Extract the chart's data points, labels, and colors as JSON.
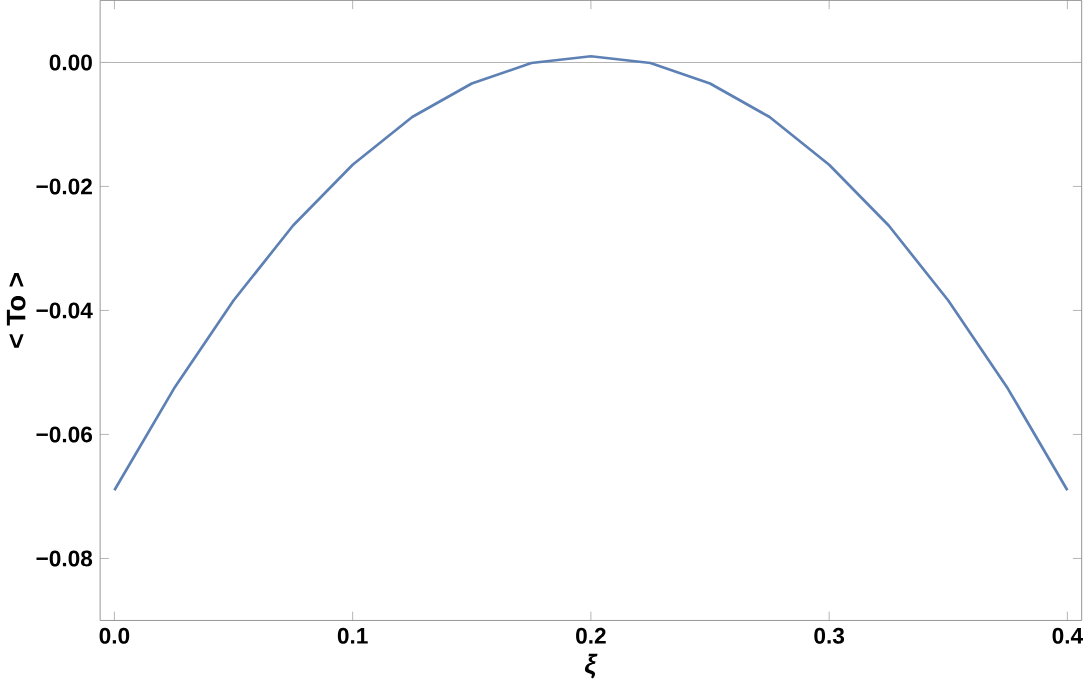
{
  "chart_data": {
    "type": "line",
    "xlabel": "*ξ*",
    "ylabel": "< To >",
    "x": [
      0,
      0.025,
      0.05,
      0.075,
      0.1,
      0.125,
      0.15,
      0.175,
      0.2,
      0.225,
      0.25,
      0.275,
      0.3,
      0.325,
      0.35,
      0.375,
      0.4
    ],
    "series": [
      {
        "color": "#5e81b5",
        "values": [
          -0.069,
          -0.0526,
          -0.0384,
          -0.0263,
          -0.0165,
          -0.0088,
          -0.0034,
          -0.0001,
          0.001,
          -0.0001,
          -0.0034,
          -0.0088,
          -0.0165,
          -0.0263,
          -0.0384,
          -0.0526,
          -0.069
        ]
      }
    ],
    "xlim": [
      -0.006,
      0.406
    ],
    "ylim": [
      -0.09,
      0.01
    ],
    "xticks": [
      {
        "value": 0,
        "label": "0.0"
      },
      0.1,
      0.2,
      0.3,
      0.4
    ],
    "yticks": [
      {
        "value": -0.08,
        "label": "−0.08"
      },
      {
        "value": -0.06,
        "label": "−0.06"
      },
      {
        "value": -0.04,
        "label": "−0.04"
      },
      {
        "value": -0.02,
        "label": "−0.02"
      },
      {
        "value": 0,
        "label": "0.00"
      }
    ],
    "ref_lines": [
      {
        "axis": "y",
        "value": 0,
        "color": "#b3b3b3"
      }
    ],
    "marker": "none",
    "line_style": "solid"
  }
}
